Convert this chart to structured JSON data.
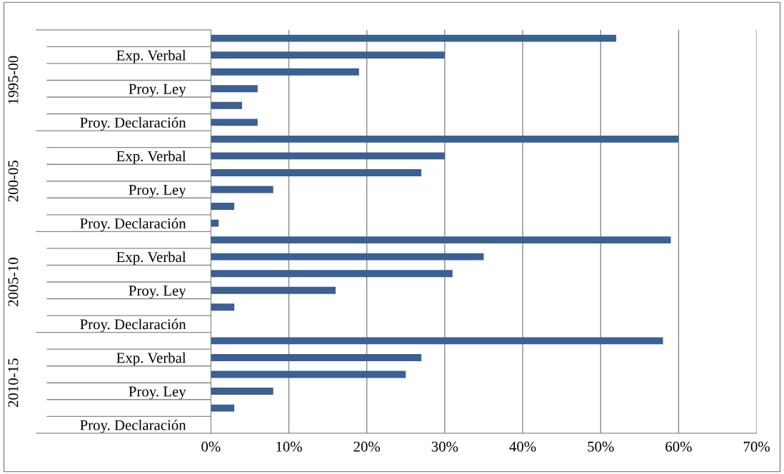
{
  "chart_data": {
    "type": "bar",
    "orientation": "horizontal",
    "categories": [
      null,
      "Exp. Verbal",
      null,
      "Proy. Ley",
      null,
      "Proy. Declaración",
      null,
      "Exp. Verbal",
      null,
      "Proy. Ley",
      null,
      "Proy. Declaración",
      null,
      "Exp. Verbal",
      null,
      "Proy. Ley",
      null,
      "Proy. Declaración",
      null,
      "Exp. Verbal",
      null,
      "Proy. Ley",
      null,
      "Proy. Declaración"
    ],
    "values": [
      52,
      30,
      19,
      6,
      4,
      6,
      60,
      30,
      27,
      8,
      3,
      1,
      59,
      35,
      31,
      16,
      3,
      0,
      58,
      27,
      25,
      8,
      3,
      0
    ],
    "color": "#3b6092",
    "xlim": [
      0,
      70
    ],
    "xticks": [
      {
        "value": 0,
        "label": "0%"
      },
      {
        "value": 10,
        "label": "10%"
      },
      {
        "value": 20,
        "label": "20%"
      },
      {
        "value": 30,
        "label": "30%"
      },
      {
        "value": 40,
        "label": "40%"
      },
      {
        "value": 50,
        "label": "50%"
      },
      {
        "value": 60,
        "label": "60%"
      },
      {
        "value": 70,
        "label": "70%"
      }
    ],
    "grid": "x",
    "annotations": [
      "1995-00",
      "200-05",
      "2005-10",
      "2010-15"
    ]
  }
}
